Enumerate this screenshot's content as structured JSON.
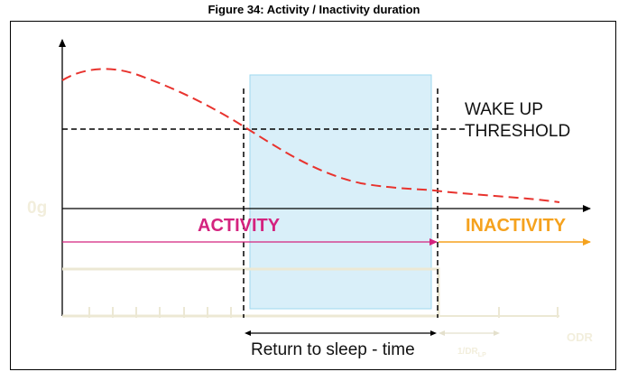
{
  "figure": {
    "caption": "Figure 34: Activity / Inactivity duration"
  },
  "labels": {
    "wake_up_line1": "WAKE UP",
    "wake_up_line2": "THRESHOLD",
    "zero_g": "0g",
    "activity": "ACTIVITY",
    "inactivity": "INACTIVITY",
    "return_to_sleep": "Return to sleep - time",
    "odr": "ODR",
    "odr_lp": "1/DR",
    "odr_lp_sub": "LP"
  },
  "colors": {
    "signal_curve": "#e8332e",
    "activity": "#d4237f",
    "inactivity": "#f5a21e",
    "highlight_fill": "#d9eff9",
    "highlight_border": "#9ed8ef",
    "faint_text": "#f2eedc"
  }
}
